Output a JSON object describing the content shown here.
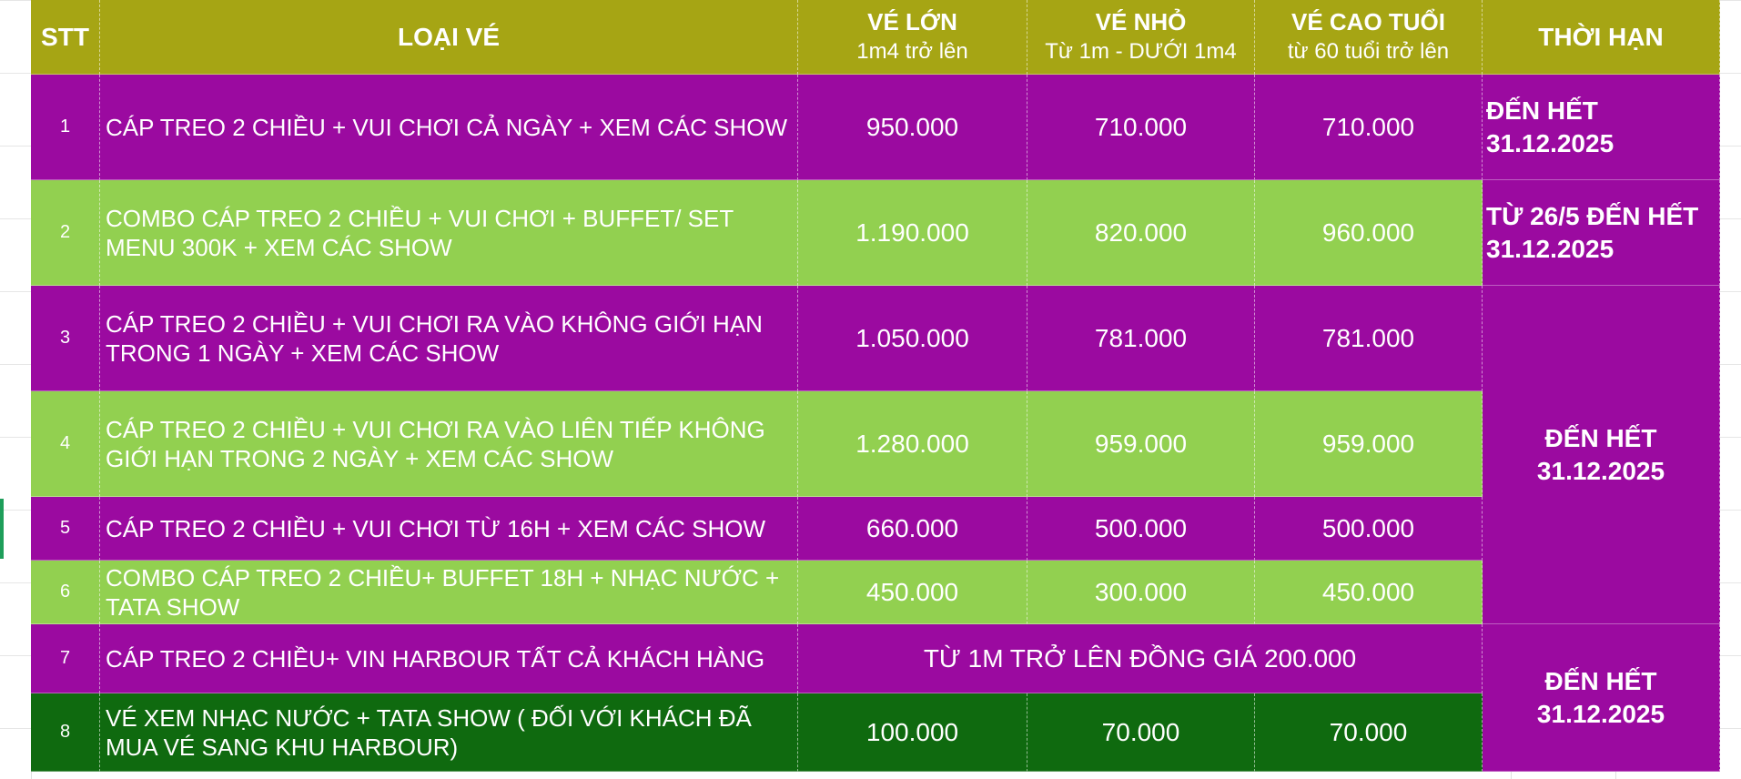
{
  "header": {
    "stt": "STT",
    "loai_ve": "LOẠI VÉ",
    "ve_lon_title": "VÉ LỚN",
    "ve_lon_sub": "1m4 trở lên",
    "ve_nho_title": "VÉ NHỎ",
    "ve_nho_sub": "Từ 1m - DƯỚI 1m4",
    "ve_cao_tuoi_title": "VÉ CAO TUỔI",
    "ve_cao_tuoi_sub": "từ 60 tuổi trở lên",
    "thoi_han": "THỜI HẠN"
  },
  "rows": [
    {
      "stt": "1",
      "loai_ve": "CÁP TREO  2 CHIỀU + VUI CHƠI  CẢ NGÀY + XEM CÁC SHOW",
      "ve_lon": "950.000",
      "ve_nho": "710.000",
      "ve_cao_tuoi": "710.000"
    },
    {
      "stt": "2",
      "loai_ve": "COMBO CÁP TREO 2 CHIỀU + VUI CHƠI + BUFFET/ SET MENU 300K + XEM CÁC SHOW",
      "ve_lon": "1.190.000",
      "ve_nho": "820.000",
      "ve_cao_tuoi": "960.000"
    },
    {
      "stt": "3",
      "loai_ve": "CÁP TREO  2 CHIỀU + VUI CHƠI RA VÀO KHÔNG GIỚI HẠN TRONG 1 NGÀY + XEM CÁC SHOW",
      "ve_lon": "1.050.000",
      "ve_nho": "781.000",
      "ve_cao_tuoi": "781.000"
    },
    {
      "stt": "4",
      "loai_ve": "CÁP TREO  2 CHIỀU + VUI CHƠI RA VÀO LIÊN TIẾP KHÔNG GIỚI HẠN TRONG 2 NGÀY + XEM CÁC SHOW",
      "ve_lon": "1.280.000",
      "ve_nho": "959.000",
      "ve_cao_tuoi": "959.000"
    },
    {
      "stt": "5",
      "loai_ve": "CÁP TREO  2 CHIỀU + VUI CHƠI TỪ 16H  + XEM CÁC SHOW",
      "ve_lon": "660.000",
      "ve_nho": "500.000",
      "ve_cao_tuoi": "500.000"
    },
    {
      "stt": "6",
      "loai_ve": "COMBO CÁP TREO 2 CHIỀU+ BUFFET 18H + NHẠC NƯỚC + TATA SHOW",
      "ve_lon": "450.000",
      "ve_nho": "300.000",
      "ve_cao_tuoi": "450.000"
    },
    {
      "stt": "7",
      "loai_ve": " CÁP TREO  2 CHIỀU+ VIN HARBOUR TẤT CẢ KHÁCH HÀNG",
      "merged_price": "TỪ 1M TRỞ LÊN ĐỒNG GIÁ 200.000"
    },
    {
      "stt": "8",
      "loai_ve": "VÉ XEM NHẠC NƯỚC + TATA SHOW ( ĐỐI VỚI KHÁCH ĐÃ MUA VÉ SANG KHU HARBOUR)",
      "ve_lon": "100.000",
      "ve_nho": "70.000",
      "ve_cao_tuoi": "70.000"
    }
  ],
  "thoi_han": {
    "row1_line1": "ĐẾN HẾT",
    "row1_line2": "31.12.2025",
    "row2_line1": "TỪ 26/5 ĐẾN HẾT",
    "row2_line2": "31.12.2025",
    "rows3to6_line1": "ĐẾN HẾT",
    "rows3to6_line2": "31.12.2025",
    "rows7to8_line1": "ĐẾN HẾT",
    "rows7to8_line2": "31.12.2025"
  },
  "colors": {
    "header": "#a6a514",
    "purple": "#9b0aa0",
    "lime": "#92d050",
    "dark_green": "#0f6a0f"
  }
}
